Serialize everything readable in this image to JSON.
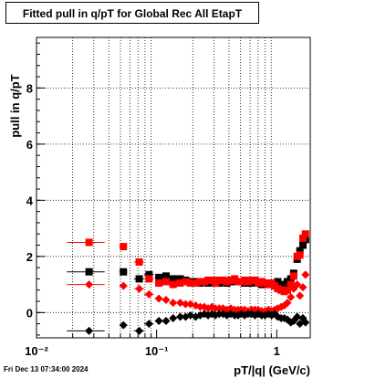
{
  "chart_data": {
    "type": "scatter",
    "title": "Fitted pull in q/pT for Global Rec All EtapT",
    "xlabel": "pT/|q| (GeV/c)",
    "ylabel": "pull in q/pT",
    "xscale": "log",
    "xlim": [
      0.01,
      1.9
    ],
    "ylim": [
      -0.9,
      9.8
    ],
    "grid": true,
    "x_ticks": [
      {
        "value": 0.01,
        "label": "10⁻²"
      },
      {
        "value": 0.1,
        "label": "10⁻¹"
      },
      {
        "value": 1,
        "label": "1"
      }
    ],
    "y_ticks": [
      {
        "value": 0,
        "label": "0"
      },
      {
        "value": 2,
        "label": "2"
      },
      {
        "value": 4,
        "label": "4"
      },
      {
        "value": 6,
        "label": "6"
      },
      {
        "value": 8,
        "label": "8"
      }
    ],
    "series": [
      {
        "color": "#000000",
        "marker": "square",
        "x": [
          0.0274,
          0.0529,
          0.0716,
          0.0865,
          0.1044,
          0.1198,
          0.1372,
          0.1572,
          0.1743,
          0.191,
          0.2114,
          0.2306,
          0.2495,
          0.2684,
          0.2887,
          0.3078,
          0.3318,
          0.3571,
          0.3844,
          0.4138,
          0.4459,
          0.4766,
          0.5056,
          0.5398,
          0.5767,
          0.6163,
          0.6582,
          0.7003,
          0.7474,
          0.7989,
          0.8541,
          0.9063,
          0.962,
          1.0194,
          1.0889,
          1.1558,
          1.2267,
          1.3089,
          1.3825,
          1.4788,
          1.5578,
          1.6512,
          1.7335
        ],
        "y": [
          1.45,
          1.45,
          1.2,
          1.35,
          1.25,
          1.3,
          1.2,
          1.2,
          1.15,
          1.1,
          1.1,
          1.05,
          1.1,
          1.05,
          1.1,
          1.05,
          1.05,
          1.1,
          1.05,
          1.1,
          1.1,
          1.1,
          1.1,
          1.05,
          1.1,
          1.05,
          1.05,
          1.1,
          1.0,
          1.0,
          1.05,
          1.05,
          0.95,
          1.1,
          1.0,
          0.95,
          1.1,
          1.2,
          1.4,
          1.9,
          2.2,
          2.4,
          2.6
        ],
        "xerr": [
          [
            0.0095,
            0.0095
          ],
          [
            0.0039,
            0.0039
          ],
          [
            0.007,
            0.007
          ],
          [
            0.008,
            0.008
          ],
          [
            0.008,
            0.008
          ],
          [
            0.008,
            0.008
          ]
        ]
      },
      {
        "color": "#ff0000",
        "marker": "square",
        "x": [
          0.0274,
          0.0529,
          0.0716,
          0.0865,
          0.1044,
          0.1198,
          0.1372,
          0.1572,
          0.1743,
          0.191,
          0.2114,
          0.2306,
          0.2495,
          0.2684,
          0.2887,
          0.3078,
          0.3318,
          0.3571,
          0.3844,
          0.4138,
          0.4459,
          0.4766,
          0.5056,
          0.5398,
          0.5767,
          0.6163,
          0.6582,
          0.7003,
          0.7474,
          0.7989,
          0.8541,
          0.9063,
          0.962,
          1.0194,
          1.0889,
          1.1558,
          1.2267,
          1.3089,
          1.3825,
          1.4788,
          1.5578,
          1.6512,
          1.7335
        ],
        "y": [
          2.5,
          2.35,
          1.8,
          1.2,
          1.05,
          1.1,
          1.0,
          1.05,
          1.1,
          1.05,
          1.05,
          1.1,
          1.1,
          1.15,
          1.15,
          1.05,
          1.15,
          1.15,
          1.1,
          1.15,
          1.2,
          1.1,
          1.1,
          1.15,
          1.1,
          1.15,
          1.15,
          1.05,
          1.1,
          1.05,
          1.0,
          1.05,
          0.95,
          0.85,
          0.8,
          0.75,
          0.8,
          1.0,
          1.3,
          2.0,
          2.05,
          2.65,
          2.8
        ],
        "xerr": [
          [
            0.0095,
            0.0095
          ],
          [
            0.0039,
            0.0039
          ],
          [
            0.007,
            0.007
          ],
          [
            0.008,
            0.008
          ],
          [
            0.008,
            0.008
          ],
          [
            0.008,
            0.008
          ]
        ]
      },
      {
        "color": "#ff0000",
        "marker": "diamond",
        "x": [
          0.0274,
          0.0529,
          0.0716,
          0.0865,
          0.1044,
          0.1198,
          0.1372,
          0.1572,
          0.1743,
          0.191,
          0.2114,
          0.2306,
          0.2495,
          0.2684,
          0.2887,
          0.3078,
          0.3318,
          0.3571,
          0.3844,
          0.4138,
          0.4459,
          0.4766,
          0.5056,
          0.5398,
          0.5767,
          0.6163,
          0.6582,
          0.7003,
          0.7474,
          0.7989,
          0.8541,
          0.9063,
          0.962,
          1.0194,
          1.0889,
          1.1558,
          1.2267,
          1.3089,
          1.3825,
          1.4788,
          1.5578,
          1.6512,
          1.7335
        ],
        "y": [
          1.0,
          0.95,
          0.85,
          0.65,
          0.5,
          0.45,
          0.35,
          0.35,
          0.3,
          0.3,
          0.25,
          0.2,
          0.2,
          0.15,
          0.2,
          0.15,
          0.15,
          0.15,
          0.1,
          0.15,
          0.1,
          0.1,
          0.1,
          0.1,
          0.05,
          0.1,
          0.1,
          0.1,
          0.05,
          0.05,
          0.1,
          0.05,
          0.1,
          0.15,
          0.2,
          0.25,
          0.35,
          0.55,
          0.85,
          1.0,
          0.6,
          0.9,
          1.35
        ],
        "xerr": [
          [
            0.0095,
            0.0095
          ],
          [
            0.0039,
            0.0039
          ],
          [
            0.007,
            0.007
          ],
          [
            0.008,
            0.008
          ],
          [
            0.008,
            0.008
          ],
          [
            0.008,
            0.008
          ]
        ]
      },
      {
        "color": "#000000",
        "marker": "diamond",
        "x": [
          0.0274,
          0.0529,
          0.0716,
          0.0865,
          0.1044,
          0.1198,
          0.1372,
          0.1572,
          0.1743,
          0.191,
          0.2114,
          0.2306,
          0.2495,
          0.2684,
          0.2887,
          0.3078,
          0.3318,
          0.3571,
          0.3844,
          0.4138,
          0.4459,
          0.4766,
          0.5056,
          0.5398,
          0.5767,
          0.6163,
          0.6582,
          0.7003,
          0.7474,
          0.7989,
          0.8541,
          0.9063,
          0.962,
          1.0194,
          1.0889,
          1.1558,
          1.2267,
          1.3089,
          1.3825,
          1.4788,
          1.5578,
          1.6512,
          1.7335
        ],
        "y": [
          -0.65,
          -0.45,
          -0.65,
          -0.4,
          -0.3,
          -0.3,
          -0.2,
          -0.15,
          -0.15,
          -0.1,
          -0.15,
          -0.1,
          -0.05,
          -0.1,
          -0.05,
          -0.1,
          -0.05,
          -0.05,
          -0.1,
          -0.05,
          -0.1,
          -0.1,
          -0.05,
          -0.1,
          -0.05,
          -0.05,
          -0.1,
          -0.05,
          -0.1,
          -0.1,
          -0.05,
          -0.1,
          -0.05,
          -0.15,
          -0.2,
          -0.2,
          -0.25,
          -0.35,
          -0.3,
          -0.15,
          -0.4,
          -0.2,
          -0.35
        ],
        "xerr": [
          [
            0.0095,
            0.0095
          ],
          [
            0.0039,
            0.0039
          ],
          [
            0.007,
            0.007
          ],
          [
            0.008,
            0.008
          ],
          [
            0.008,
            0.008
          ],
          [
            0.008,
            0.008
          ]
        ]
      }
    ]
  },
  "footer": {
    "timestamp": "Fri Dec 13 07:34:00 2024"
  }
}
